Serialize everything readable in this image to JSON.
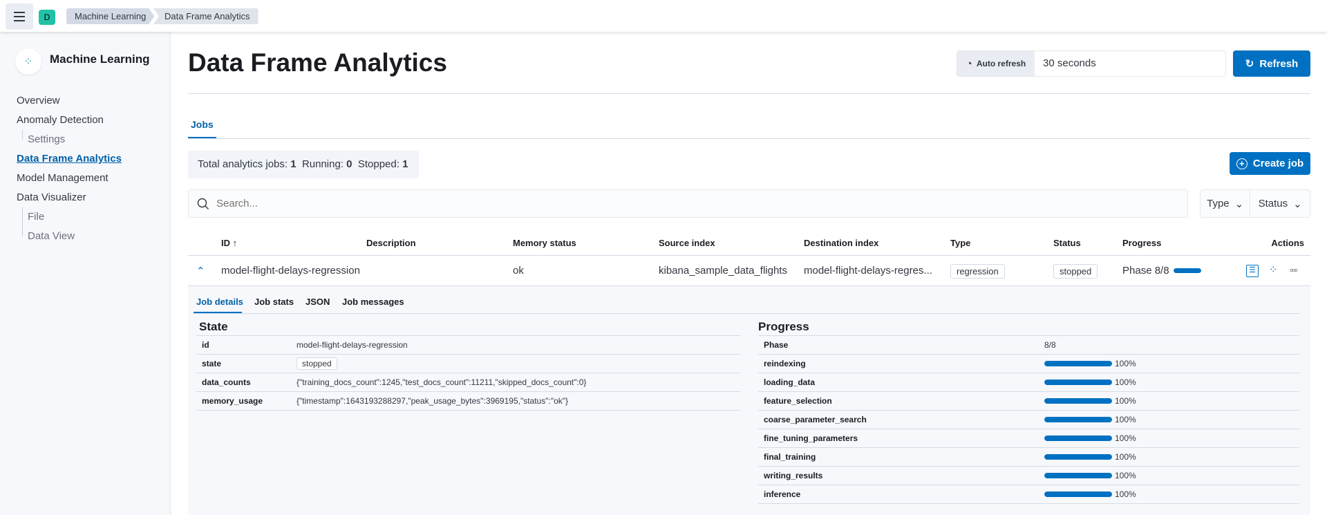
{
  "header": {
    "space_initial": "D",
    "breadcrumbs": [
      "Machine Learning",
      "Data Frame Analytics"
    ]
  },
  "sidebar": {
    "title": "Machine Learning",
    "items": [
      {
        "label": "Overview"
      },
      {
        "label": "Anomaly Detection"
      },
      {
        "label": "Settings"
      },
      {
        "label": "Data Frame Analytics"
      },
      {
        "label": "Model Management"
      },
      {
        "label": "Data Visualizer"
      },
      {
        "label": "File"
      },
      {
        "label": "Data View"
      }
    ]
  },
  "page": {
    "title": "Data Frame Analytics",
    "auto_refresh_label": "Auto refresh",
    "auto_refresh_value": "30 seconds",
    "refresh_label": "Refresh"
  },
  "tabs": {
    "jobs": "Jobs"
  },
  "summary": {
    "total_label": "Total analytics jobs:",
    "total": "1",
    "running_label": "Running:",
    "running": "0",
    "stopped_label": "Stopped:",
    "stopped": "1"
  },
  "create_job": "Create job",
  "search": {
    "placeholder": "Search..."
  },
  "filters": {
    "type": "Type",
    "status": "Status"
  },
  "table": {
    "columns": [
      "ID",
      "Description",
      "Memory status",
      "Source index",
      "Destination index",
      "Type",
      "Status",
      "Progress",
      "Actions"
    ],
    "row": {
      "id": "model-flight-delays-regression",
      "description": "",
      "memory_status": "ok",
      "source_index": "kibana_sample_data_flights",
      "destination_index": "model-flight-delays-regres...",
      "type": "regression",
      "status": "stopped",
      "progress_label": "Phase 8/8",
      "progress": 1.0
    }
  },
  "details": {
    "tabs": [
      "Job details",
      "Job stats",
      "JSON",
      "Job messages"
    ],
    "state": {
      "title": "State",
      "rows": [
        {
          "key": "id",
          "value": "model-flight-delays-regression"
        },
        {
          "key": "state",
          "value": "stopped"
        },
        {
          "key": "data_counts",
          "value": "{\"training_docs_count\":1245,\"test_docs_count\":11211,\"skipped_docs_count\":0}"
        },
        {
          "key": "memory_usage",
          "value": "{\"timestamp\":1643193288297,\"peak_usage_bytes\":3969195,\"status\":\"ok\"}"
        }
      ]
    },
    "progress": {
      "title": "Progress",
      "phase_label": "Phase",
      "phase": "8/8",
      "rows": [
        {
          "key": "reindexing",
          "percent": 100,
          "label": "100%"
        },
        {
          "key": "loading_data",
          "percent": 100,
          "label": "100%"
        },
        {
          "key": "feature_selection",
          "percent": 100,
          "label": "100%"
        },
        {
          "key": "coarse_parameter_search",
          "percent": 100,
          "label": "100%"
        },
        {
          "key": "fine_tuning_parameters",
          "percent": 100,
          "label": "100%"
        },
        {
          "key": "final_training",
          "percent": 100,
          "label": "100%"
        },
        {
          "key": "writing_results",
          "percent": 100,
          "label": "100%"
        },
        {
          "key": "inference",
          "percent": 100,
          "label": "100%"
        }
      ]
    }
  },
  "colors": {
    "accent": "#0071c2",
    "space": "#20c3a6"
  }
}
